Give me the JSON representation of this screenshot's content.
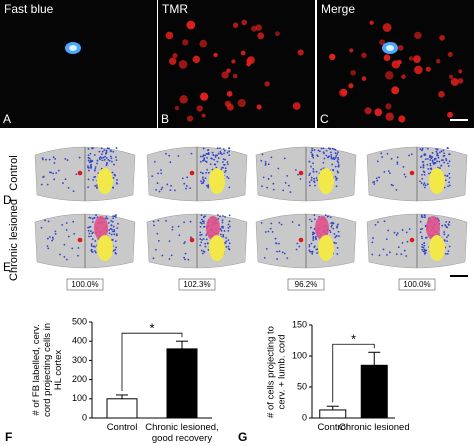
{
  "micrographs": [
    {
      "letter": "A",
      "title": "Fast blue"
    },
    {
      "letter": "B",
      "title": "TMR"
    },
    {
      "letter": "C",
      "title": "Merge"
    }
  ],
  "reconstructions": {
    "rows": [
      {
        "letter": "D",
        "label": "Control"
      },
      {
        "letter": "E",
        "label": "Chronic lesioned"
      }
    ],
    "percentages": [
      "100.0%",
      "102.3%",
      "96.2%",
      "100.0%"
    ]
  },
  "chart_data": [
    {
      "type": "bar",
      "panel": "F",
      "ylabel": "# of FB labelled, cerv. cord projecting cells in HL cortex",
      "categories": [
        "Control",
        "Chronic lesioned, good recovery"
      ],
      "values": [
        100,
        360
      ],
      "errors": [
        20,
        40
      ],
      "colors": [
        "#ffffff",
        "#000000"
      ],
      "ylim": [
        0,
        500
      ],
      "yticks": [
        0,
        100,
        200,
        300,
        400,
        500
      ],
      "annotation": "*"
    },
    {
      "type": "bar",
      "panel": "G",
      "ylabel": "# of cells projecting to cerv. + lumb. cord",
      "categories": [
        "Control",
        "Chronic lesioned"
      ],
      "values": [
        13,
        85
      ],
      "errors": [
        6,
        21
      ],
      "colors": [
        "#ffffff",
        "#000000"
      ],
      "ylim": [
        0,
        150
      ],
      "yticks": [
        0,
        50,
        100,
        150
      ],
      "annotation": "*"
    }
  ]
}
